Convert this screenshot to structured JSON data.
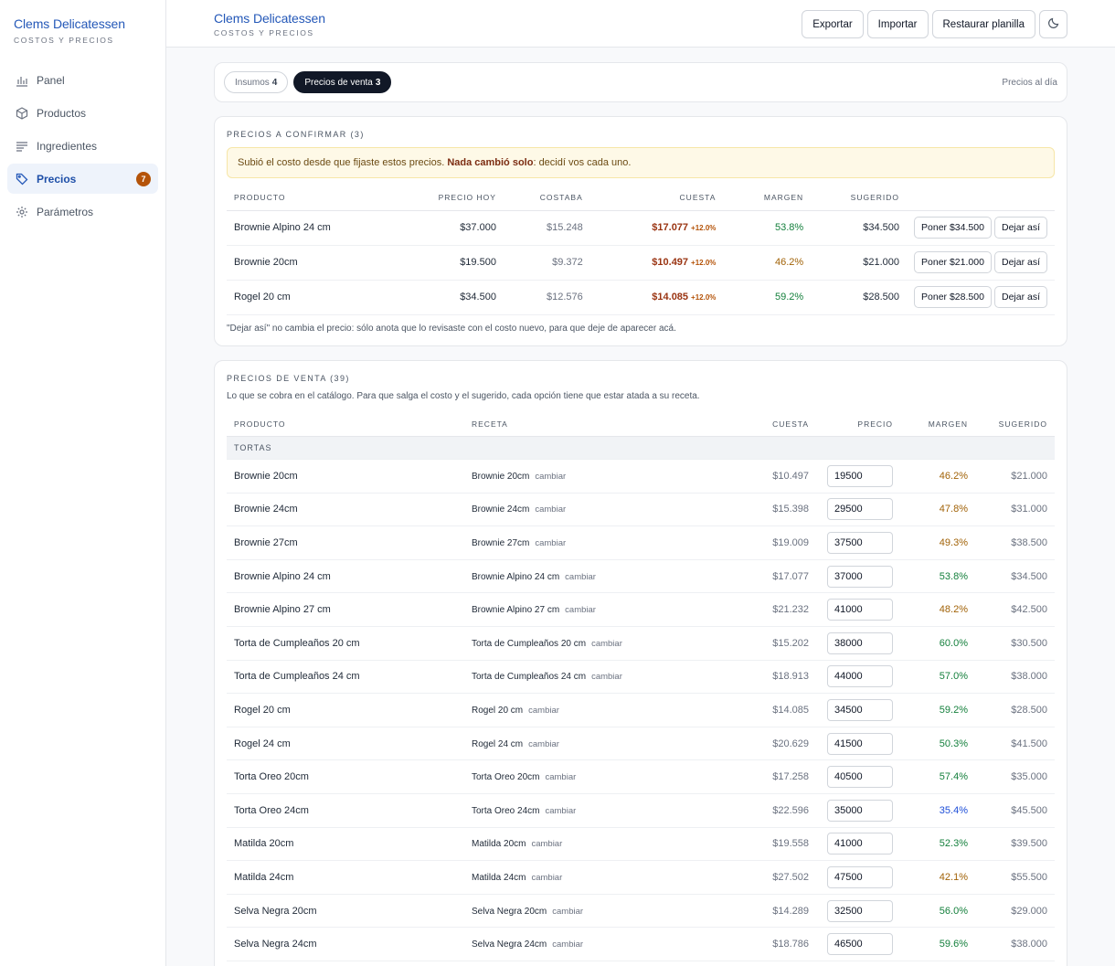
{
  "app": {
    "title": "Clems Delicatessen",
    "subtitle": "COSTOS Y PRECIOS"
  },
  "sidebar": {
    "items": [
      {
        "label": "Panel",
        "icon": "bar-chart-icon"
      },
      {
        "label": "Productos",
        "icon": "box-icon"
      },
      {
        "label": "Ingredientes",
        "icon": "list-icon"
      },
      {
        "label": "Precios",
        "icon": "tag-icon",
        "badge": "7",
        "active": true
      },
      {
        "label": "Parámetros",
        "icon": "gear-icon"
      }
    ]
  },
  "header": {
    "title": "Clems Delicatessen",
    "subtitle": "COSTOS Y PRECIOS",
    "export_label": "Exportar",
    "import_label": "Importar",
    "restore_label": "Restaurar planilla",
    "theme_icon": "moon-icon"
  },
  "tabs": {
    "items": [
      {
        "label": "Insumos",
        "count": "4"
      },
      {
        "label": "Precios de venta",
        "count": "3"
      }
    ],
    "right_text": "Precios al día"
  },
  "confirm": {
    "title": "PRECIOS A CONFIRMAR (3)",
    "alert_pre": "Subió el costo desde que fijaste estos precios. ",
    "alert_bold": "Nada cambió solo",
    "alert_post": ": decidí vos cada uno.",
    "columns": {
      "product": "PRODUCTO",
      "price_today": "PRECIO HOY",
      "was": "COSTABA",
      "costs": "CUESTA",
      "margin": "MARGEN",
      "suggested": "SUGERIDO"
    },
    "rows": [
      {
        "product": "Brownie Alpino 24 cm",
        "price": "$37.000",
        "was": "$15.248",
        "cost": "$17.077",
        "pct": "+12.0%",
        "margin": "53.8%",
        "suggested": "$34.500",
        "set": "Poner $34.500",
        "leave": "Dejar así"
      },
      {
        "product": "Brownie 20cm",
        "price": "$19.500",
        "was": "$9.372",
        "cost": "$10.497",
        "pct": "+12.0%",
        "margin": "46.2%",
        "suggested": "$21.000",
        "set": "Poner $21.000",
        "leave": "Dejar así"
      },
      {
        "product": "Rogel 20 cm",
        "price": "$34.500",
        "was": "$12.576",
        "cost": "$14.085",
        "pct": "+12.0%",
        "margin": "59.2%",
        "suggested": "$28.500",
        "set": "Poner $28.500",
        "leave": "Dejar así"
      }
    ],
    "note": "\"Dejar así\" no cambia el precio: sólo anota que lo revisaste con el costo nuevo, para que deje de aparecer acá."
  },
  "sales": {
    "title": "PRECIOS DE VENTA (39)",
    "description": "Lo que se cobra en el catálogo. Para que salga el costo y el sugerido, cada opción tiene que estar atada a su receta.",
    "columns": {
      "product": "PRODUCTO",
      "recipe": "RECETA",
      "costs": "CUESTA",
      "price": "PRECIO",
      "margin": "MARGEN",
      "suggested": "SUGERIDO"
    },
    "group": "TORTAS",
    "change_label": "cambiar",
    "rows": [
      {
        "product": "Brownie 20cm",
        "recipe": "Brownie 20cm",
        "cost": "$10.497",
        "price": "19500",
        "margin": "46.2%",
        "suggested": "$21.000"
      },
      {
        "product": "Brownie 24cm",
        "recipe": "Brownie 24cm",
        "cost": "$15.398",
        "price": "29500",
        "margin": "47.8%",
        "suggested": "$31.000"
      },
      {
        "product": "Brownie 27cm",
        "recipe": "Brownie 27cm",
        "cost": "$19.009",
        "price": "37500",
        "margin": "49.3%",
        "suggested": "$38.500"
      },
      {
        "product": "Brownie Alpino 24 cm",
        "recipe": "Brownie Alpino 24 cm",
        "cost": "$17.077",
        "price": "37000",
        "margin": "53.8%",
        "suggested": "$34.500"
      },
      {
        "product": "Brownie Alpino 27 cm",
        "recipe": "Brownie Alpino 27 cm",
        "cost": "$21.232",
        "price": "41000",
        "margin": "48.2%",
        "suggested": "$42.500"
      },
      {
        "product": "Torta de Cumpleaños 20 cm",
        "recipe": "Torta de Cumpleaños 20 cm",
        "cost": "$15.202",
        "price": "38000",
        "margin": "60.0%",
        "suggested": "$30.500"
      },
      {
        "product": "Torta de Cumpleaños 24 cm",
        "recipe": "Torta de Cumpleaños 24 cm",
        "cost": "$18.913",
        "price": "44000",
        "margin": "57.0%",
        "suggested": "$38.000"
      },
      {
        "product": "Rogel 20 cm",
        "recipe": "Rogel 20 cm",
        "cost": "$14.085",
        "price": "34500",
        "margin": "59.2%",
        "suggested": "$28.500"
      },
      {
        "product": "Rogel 24 cm",
        "recipe": "Rogel 24 cm",
        "cost": "$20.629",
        "price": "41500",
        "margin": "50.3%",
        "suggested": "$41.500"
      },
      {
        "product": "Torta Oreo 20cm",
        "recipe": "Torta Oreo 20cm",
        "cost": "$17.258",
        "price": "40500",
        "margin": "57.4%",
        "suggested": "$35.000"
      },
      {
        "product": "Torta Oreo 24cm",
        "recipe": "Torta Oreo 24cm",
        "cost": "$22.596",
        "price": "35000",
        "margin": "35.4%",
        "suggested": "$45.500"
      },
      {
        "product": "Matilda 20cm",
        "recipe": "Matilda 20cm",
        "cost": "$19.558",
        "price": "41000",
        "margin": "52.3%",
        "suggested": "$39.500"
      },
      {
        "product": "Matilda 24cm",
        "recipe": "Matilda 24cm",
        "cost": "$27.502",
        "price": "47500",
        "margin": "42.1%",
        "suggested": "$55.500"
      },
      {
        "product": "Selva Negra 20cm",
        "recipe": "Selva Negra 20cm",
        "cost": "$14.289",
        "price": "32500",
        "margin": "56.0%",
        "suggested": "$29.000"
      },
      {
        "product": "Selva Negra 24cm",
        "recipe": "Selva Negra 24cm",
        "cost": "$18.786",
        "price": "46500",
        "margin": "59.6%",
        "suggested": "$38.000"
      }
    ]
  }
}
